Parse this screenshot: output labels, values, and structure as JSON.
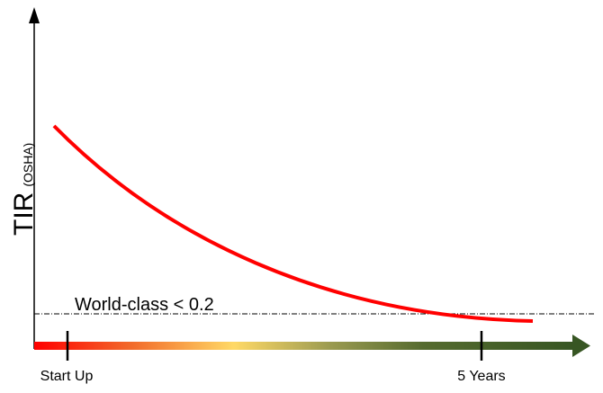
{
  "y_axis": {
    "label": "TIR",
    "unit": "(OSHA)"
  },
  "x_axis": {
    "labels": [
      "Start Up",
      "5 Years"
    ]
  },
  "annotation": "World-class < 0.2"
}
